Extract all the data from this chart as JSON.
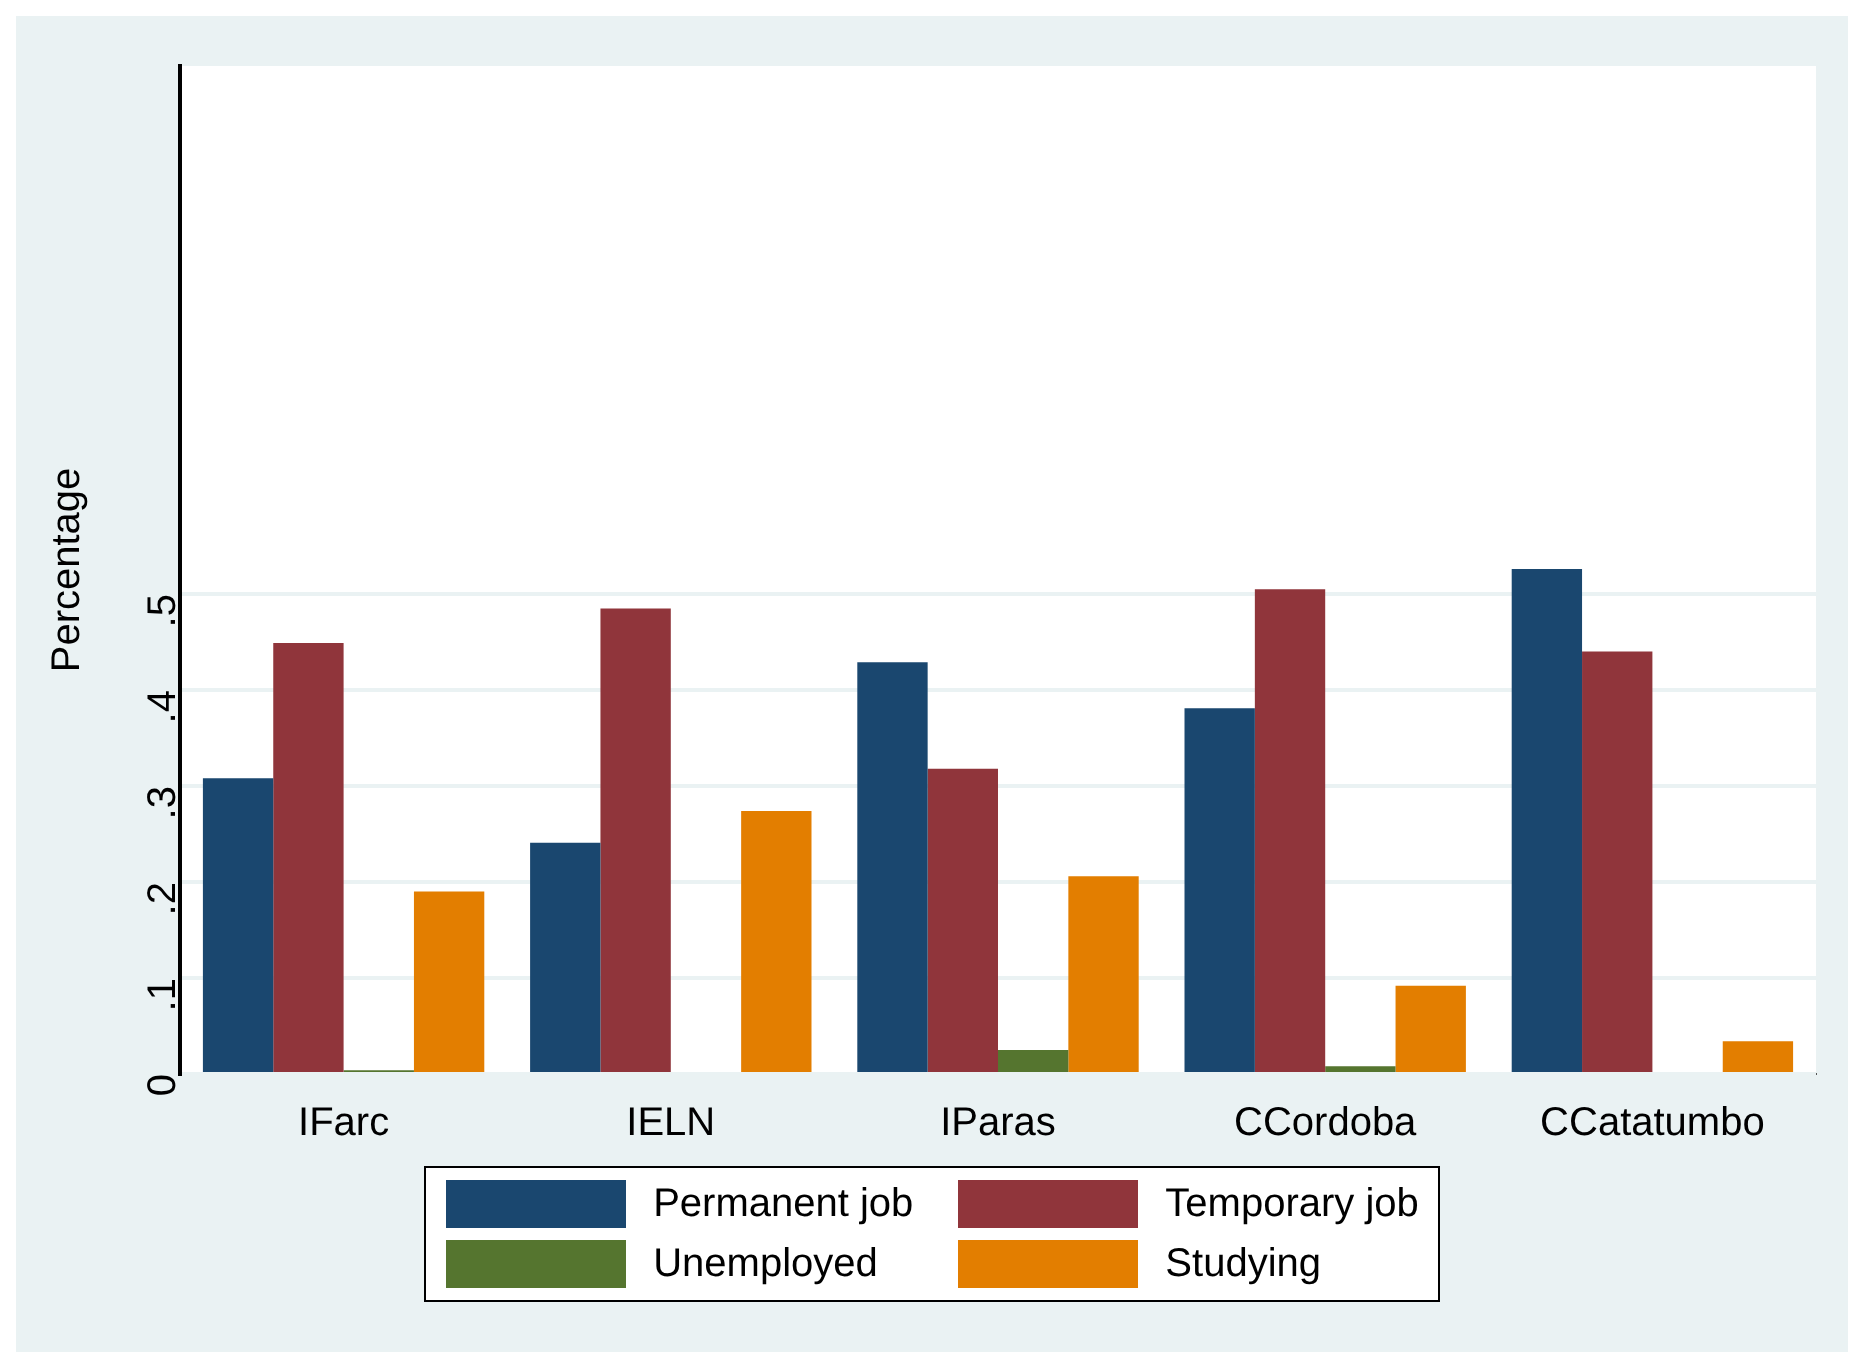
{
  "chart_data": {
    "type": "bar",
    "ylabel": "Percentage",
    "categories": [
      "IFarc",
      "IELN",
      "IParas",
      "CCordoba",
      "CCatatumbo"
    ],
    "series": [
      {
        "name": "Permanent job",
        "color": "#1a476f",
        "values": [
          0.308,
          0.241,
          0.429,
          0.381,
          0.526
        ]
      },
      {
        "name": "Temporary job",
        "color": "#90353b",
        "values": [
          0.449,
          0.485,
          0.318,
          0.505,
          0.44
        ]
      },
      {
        "name": "Unemployed",
        "color": "#55752f",
        "values": [
          0.004,
          0,
          0.025,
          0.008,
          0
        ]
      },
      {
        "name": "Studying",
        "color": "#e37e00",
        "values": [
          0.19,
          0.274,
          0.206,
          0.092,
          0.034
        ]
      }
    ],
    "ylim": [
      0,
      1.05
    ],
    "yticks": [
      0,
      {
        "value": 0.1,
        "label": ".1"
      },
      {
        "value": 0.2,
        "label": ".2"
      },
      {
        "value": 0.3,
        "label": ".3"
      },
      {
        "value": 0.4,
        "label": ".4"
      },
      {
        "value": 0.5,
        "label": ".5"
      }
    ],
    "grid": "y",
    "legend": "bottom"
  }
}
